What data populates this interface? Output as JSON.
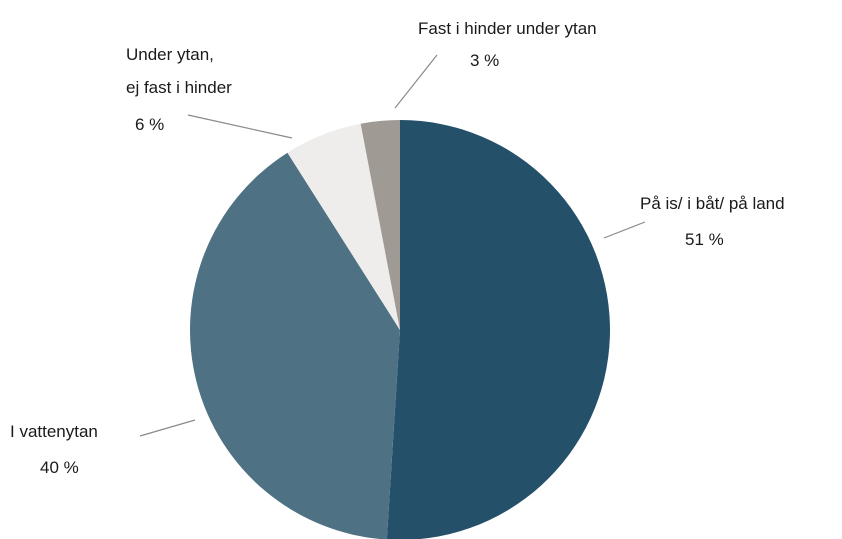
{
  "chart_data": {
    "type": "pie",
    "categories": [
      "På is/ i båt/ på land",
      "I vattenytan",
      "Under ytan,\nej fast i hinder",
      "Fast i hinder under ytan"
    ],
    "values": [
      51,
      40,
      6,
      3
    ],
    "value_labels": [
      "51 %",
      "40 %",
      "6 %",
      "3 %"
    ],
    "colors": [
      "#24506a",
      "#4f7184",
      "#efedeb",
      "#a09a95"
    ]
  }
}
